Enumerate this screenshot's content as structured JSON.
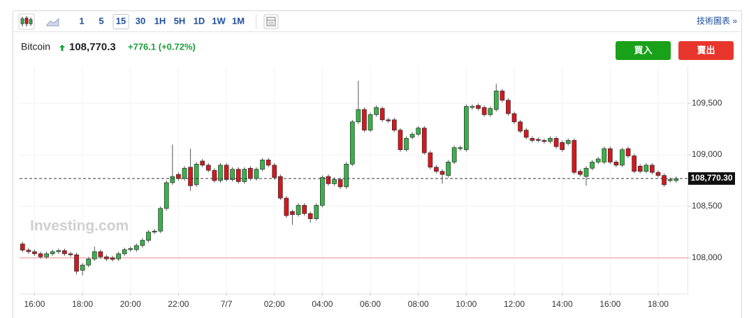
{
  "toolbar": {
    "intervals": [
      "1",
      "5",
      "15",
      "30",
      "1H",
      "5H",
      "1D",
      "1W",
      "1M"
    ],
    "active_interval": 2,
    "chart_link": "技術圖表 »"
  },
  "header": {
    "name": "Bitcoin",
    "price": "108,770.3",
    "change": "+776.1 (+0.72%)"
  },
  "buttons": {
    "buy": "買入",
    "sell": "賣出"
  },
  "chart_data": {
    "type": "candlestick",
    "watermark": "Investing.com",
    "up_color": "#36b449",
    "down_color": "#d9161e",
    "categories": [
      null,
      null,
      "16:00",
      null,
      null,
      null,
      null,
      null,
      null,
      null,
      "18:00",
      null,
      null,
      null,
      null,
      null,
      null,
      null,
      "20:00",
      null,
      null,
      null,
      null,
      null,
      null,
      null,
      "22:00",
      null,
      null,
      null,
      null,
      null,
      null,
      null,
      "7/7",
      null,
      null,
      null,
      null,
      null,
      null,
      null,
      "02:00",
      null,
      null,
      null,
      null,
      null,
      null,
      null,
      "04:00",
      null,
      null,
      null,
      null,
      null,
      null,
      null,
      "06:00",
      null,
      null,
      null,
      null,
      null,
      null,
      null,
      "08:00",
      null,
      null,
      null,
      null,
      null,
      null,
      null,
      "10:00",
      null,
      null,
      null,
      null,
      null,
      null,
      null,
      "12:00",
      null,
      null,
      null,
      null,
      null,
      null,
      null,
      "14:00",
      null,
      null,
      null,
      null,
      null,
      null,
      null,
      "16:00",
      null,
      null,
      null,
      null,
      null,
      null,
      null,
      "18:00",
      null,
      null,
      null
    ],
    "open": [
      108135,
      108075,
      108060,
      108040,
      108010,
      108040,
      108060,
      108070,
      108040,
      108030,
      107880,
      107930,
      107990,
      108060,
      108010,
      108000,
      107990,
      108040,
      108080,
      108080,
      108120,
      108170,
      108250,
      108260,
      108480,
      108730,
      108810,
      108770,
      108880,
      108710,
      108940,
      108900,
      108850,
      108750,
      108900,
      108760,
      108860,
      108740,
      108870,
      108770,
      108860,
      108950,
      108900,
      108790,
      108580,
      108450,
      108420,
      108510,
      108430,
      108380,
      108510,
      108790,
      108720,
      108760,
      108690,
      108910,
      109320,
      109440,
      109240,
      109390,
      109450,
      109340,
      109340,
      109240,
      109050,
      109170,
      109200,
      109260,
      109020,
      108880,
      108840,
      108800,
      108930,
      109060,
      109050,
      109460,
      109480,
      109460,
      109390,
      109440,
      109620,
      109530,
      109400,
      109320,
      109240,
      109160,
      109150,
      109140,
      109130,
      109160,
      109120,
      109110,
      109140,
      108840,
      108790,
      108870,
      108930,
      108930,
      109060,
      108930,
      108900,
      109060,
      108990,
      108890,
      108840,
      108900,
      108830,
      108800,
      108750,
      108750
    ],
    "high": [
      108155,
      108095,
      108080,
      108060,
      108060,
      108080,
      108090,
      108090,
      108060,
      108050,
      107950,
      108010,
      108110,
      108080,
      108030,
      108020,
      108060,
      108100,
      108110,
      108140,
      108190,
      108270,
      108280,
      108500,
      108750,
      109100,
      108830,
      108890,
      109060,
      108930,
      108960,
      108920,
      108870,
      108920,
      108920,
      108880,
      108880,
      108880,
      108890,
      108880,
      108970,
      108970,
      108920,
      108810,
      108600,
      108470,
      108530,
      108530,
      108450,
      108530,
      108800,
      108810,
      108780,
      108780,
      108930,
      109340,
      109720,
      109460,
      109410,
      109480,
      109470,
      109360,
      109360,
      109260,
      109180,
      109220,
      109280,
      109280,
      109040,
      108900,
      108860,
      108950,
      109090,
      109090,
      109490,
      109490,
      109500,
      109480,
      109470,
      109690,
      109640,
      109550,
      109420,
      109340,
      109260,
      109180,
      109170,
      109160,
      109180,
      109180,
      109140,
      109160,
      109160,
      108860,
      108890,
      108950,
      108980,
      109080,
      109080,
      108950,
      109070,
      109080,
      109010,
      108910,
      108920,
      108920,
      108850,
      108820,
      108780,
      108790
    ],
    "low": [
      108055,
      108040,
      108020,
      107990,
      107990,
      108020,
      108040,
      108020,
      108010,
      107840,
      107830,
      107910,
      107970,
      107990,
      107970,
      107965,
      107970,
      108020,
      108060,
      108060,
      108100,
      108150,
      108230,
      108240,
      108460,
      108710,
      108750,
      108750,
      108650,
      108690,
      108880,
      108830,
      108730,
      108730,
      108740,
      108740,
      108720,
      108720,
      108750,
      108750,
      108840,
      108880,
      108760,
      108560,
      108390,
      108320,
      108400,
      108410,
      108340,
      108360,
      108490,
      108700,
      108700,
      108670,
      108670,
      108890,
      109300,
      109220,
      109220,
      109370,
      109320,
      109310,
      109220,
      109030,
      109030,
      109150,
      109180,
      109000,
      108860,
      108820,
      108720,
      108780,
      108910,
      109040,
      109030,
      109440,
      109430,
      109370,
      109370,
      109420,
      109510,
      109380,
      109300,
      109210,
      109150,
      109120,
      109120,
      109110,
      109110,
      109060,
      109030,
      109090,
      108810,
      108790,
      108700,
      108850,
      108910,
      108910,
      108910,
      108880,
      108880,
      108970,
      108820,
      108820,
      108820,
      108810,
      108780,
      108690,
      108730,
      108730
    ],
    "close": [
      108075,
      108060,
      108040,
      108010,
      108040,
      108060,
      108070,
      108040,
      108030,
      107870,
      107930,
      107990,
      108060,
      108010,
      107990,
      107985,
      108040,
      108080,
      108090,
      108120,
      108170,
      108250,
      108260,
      108480,
      108730,
      108790,
      108770,
      108870,
      108700,
      108910,
      108900,
      108850,
      108750,
      108900,
      108760,
      108860,
      108740,
      108860,
      108770,
      108860,
      108950,
      108900,
      108780,
      108580,
      108410,
      108420,
      108510,
      108430,
      108380,
      108510,
      108780,
      108720,
      108760,
      108690,
      108910,
      109320,
      109440,
      109240,
      109390,
      109460,
      109340,
      109330,
      109240,
      109050,
      109160,
      109200,
      109260,
      109020,
      108880,
      108840,
      108810,
      108930,
      109070,
      109070,
      109470,
      109470,
      109450,
      109390,
      109450,
      109620,
      109530,
      109400,
      109320,
      109230,
      109170,
      109140,
      109140,
      109130,
      109160,
      109080,
      109050,
      109140,
      108830,
      108810,
      108870,
      108930,
      108960,
      109060,
      108930,
      108900,
      109050,
      108990,
      108840,
      108840,
      108900,
      108830,
      108800,
      108710,
      108760,
      108770
    ],
    "ylim": [
      107660,
      109860
    ],
    "yticks": [
      {
        "value": 108000,
        "label": "108,000"
      },
      {
        "value": 108500,
        "label": "108,500"
      },
      {
        "value": 109000,
        "label": "109,000"
      },
      {
        "value": 109500,
        "label": "109,500"
      }
    ],
    "grid": true,
    "last_price": {
      "value": 108770.3,
      "label": "108,770.30"
    },
    "reference_line": 108000,
    "reference_color": "#f2b3b3"
  }
}
